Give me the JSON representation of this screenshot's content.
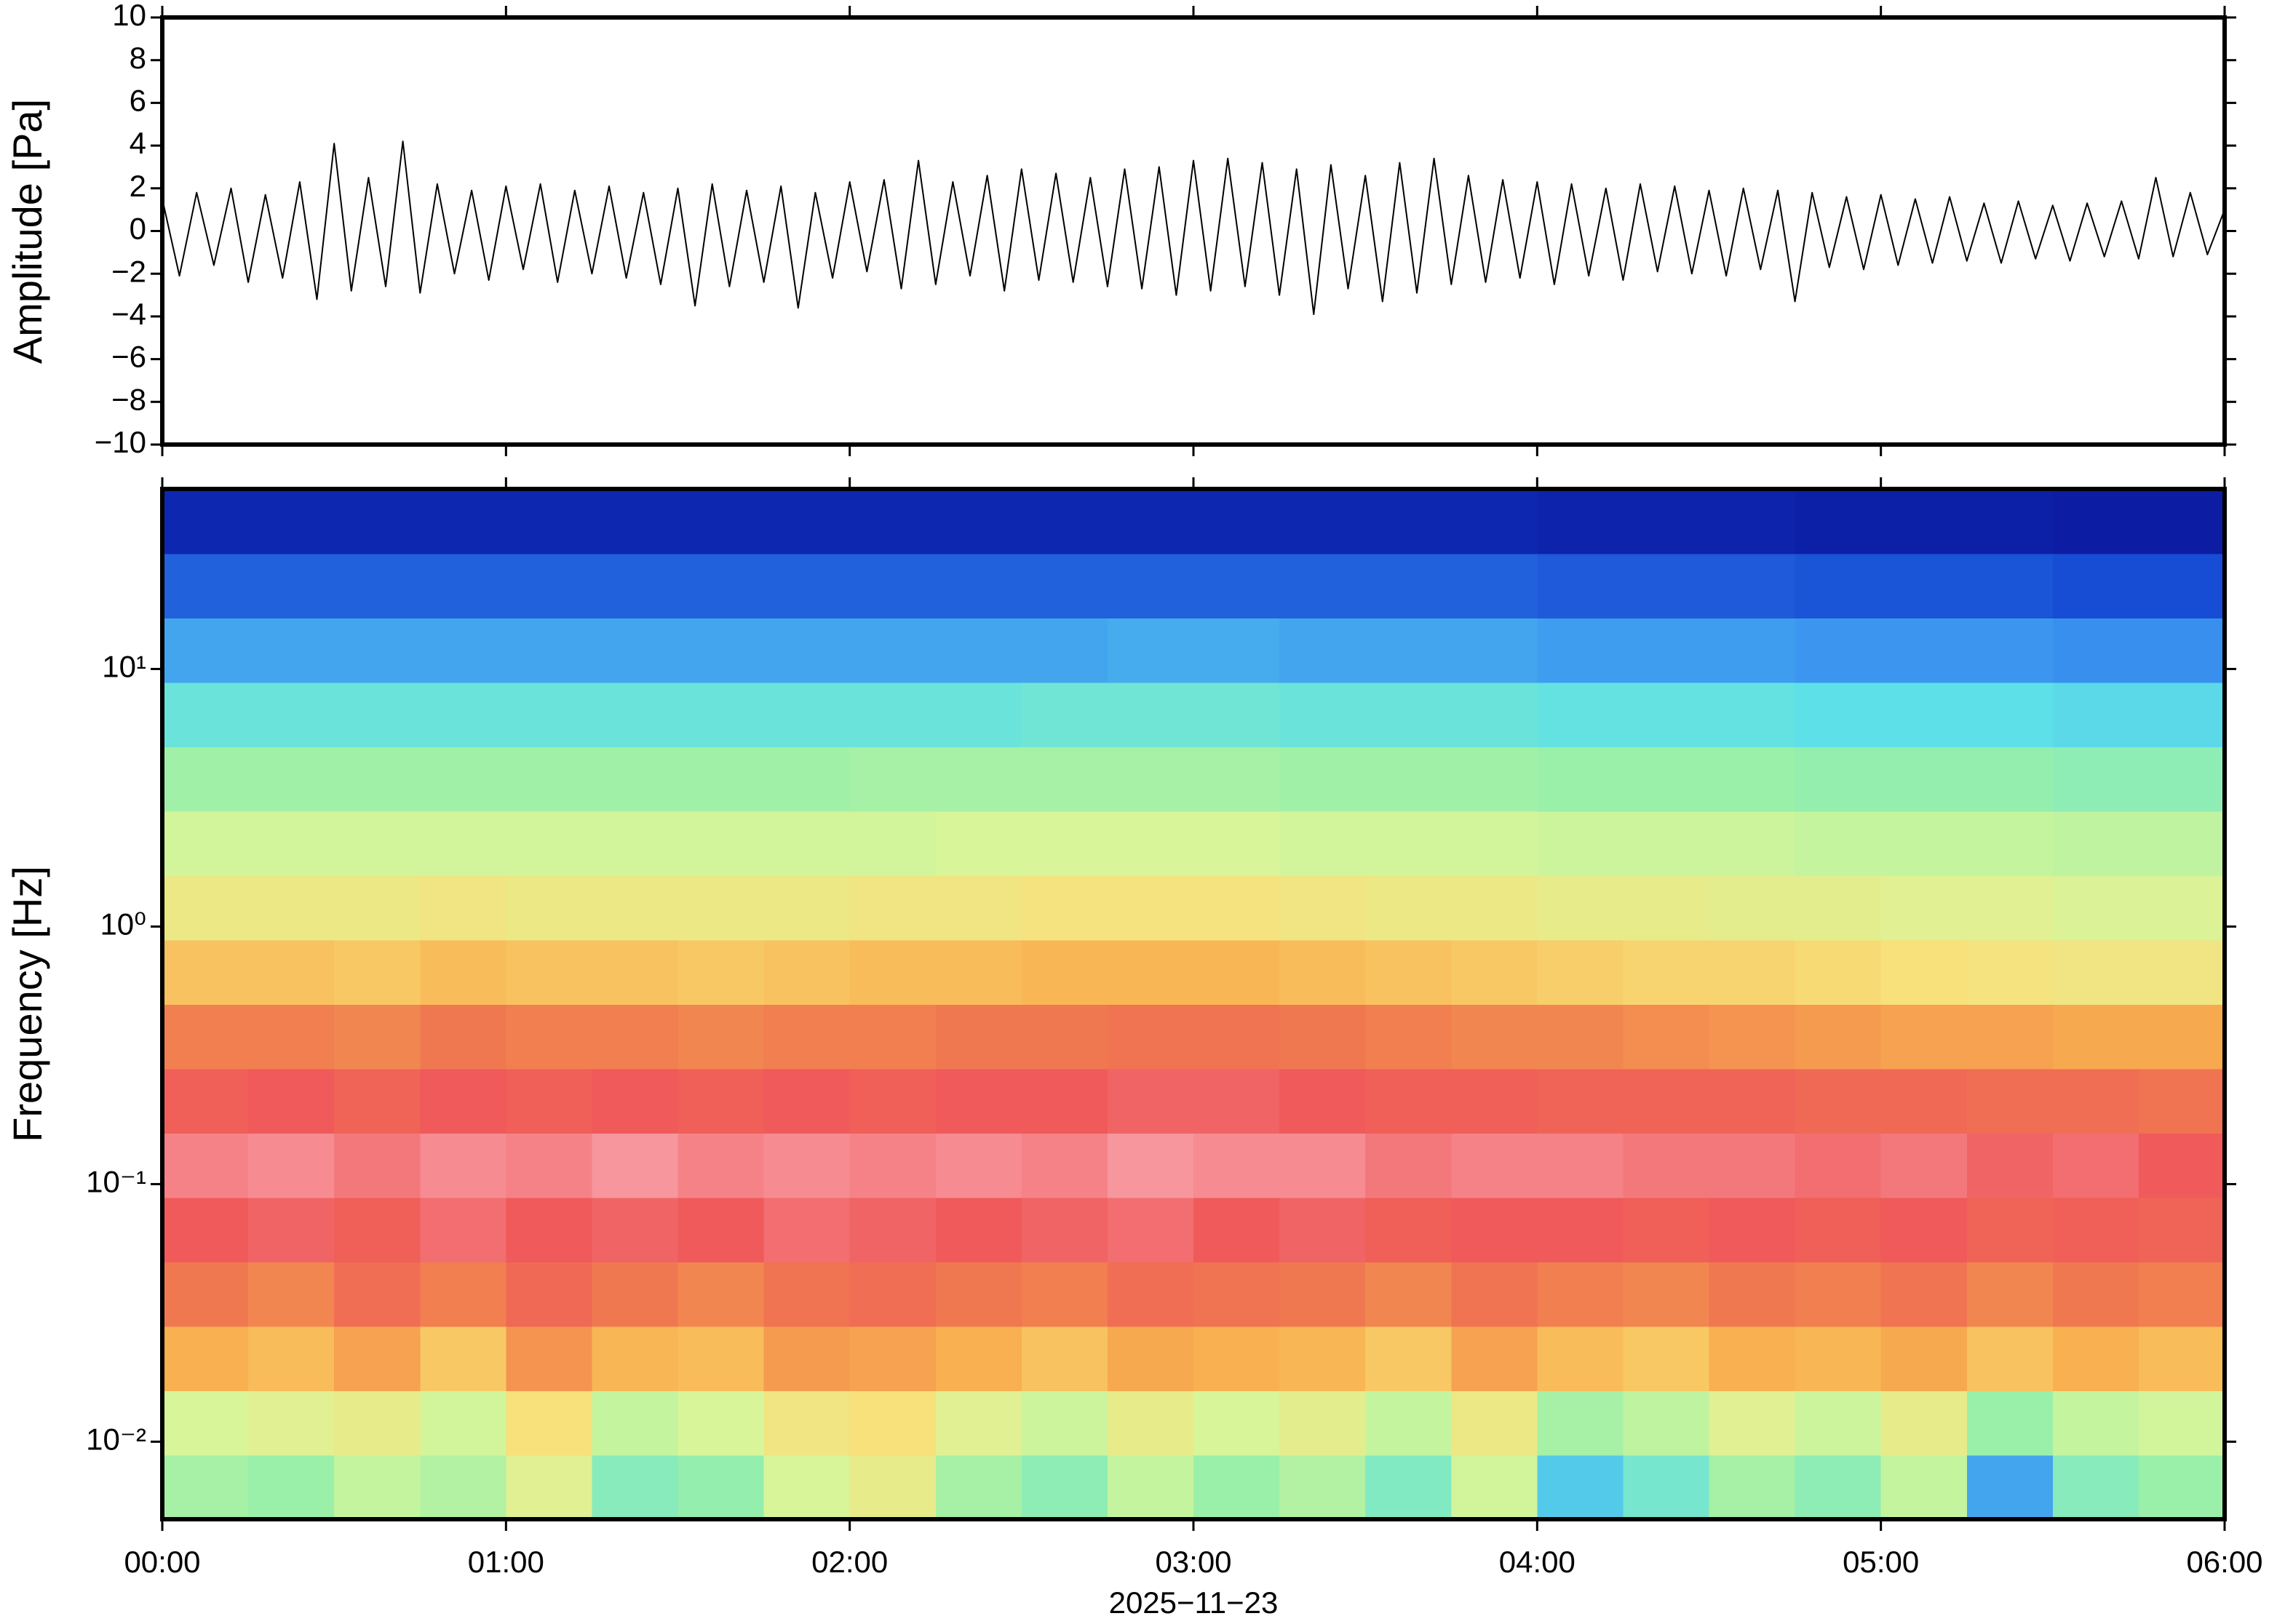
{
  "chart_data": [
    {
      "type": "line",
      "ylabel": "Amplitude [Pa]",
      "xlim": [
        0,
        360
      ],
      "ylim": [
        -10,
        10
      ],
      "yticks": [
        {
          "value": -10,
          "label": "−10"
        },
        {
          "value": -8,
          "label": "−8"
        },
        {
          "value": -6,
          "label": "−6"
        },
        {
          "value": -4,
          "label": "−4"
        },
        {
          "value": -2,
          "label": "−2"
        },
        0,
        2,
        4,
        6,
        8,
        10
      ],
      "x": [
        0,
        3,
        6,
        9,
        12,
        15,
        18,
        21,
        24,
        27,
        30,
        33,
        36,
        39,
        42,
        45,
        48,
        51,
        54,
        57,
        60,
        63,
        66,
        69,
        72,
        75,
        78,
        81,
        84,
        87,
        90,
        93,
        96,
        99,
        102,
        105,
        108,
        111,
        114,
        117,
        120,
        123,
        126,
        129,
        132,
        135,
        138,
        141,
        144,
        147,
        150,
        153,
        156,
        159,
        162,
        165,
        168,
        171,
        174,
        177,
        180,
        183,
        186,
        189,
        192,
        195,
        198,
        201,
        204,
        207,
        210,
        213,
        216,
        219,
        222,
        225,
        228,
        231,
        234,
        237,
        240,
        243,
        246,
        249,
        252,
        255,
        258,
        261,
        264,
        267,
        270,
        273,
        276,
        279,
        282,
        285,
        288,
        291,
        294,
        297,
        300,
        303,
        306,
        309,
        312,
        315,
        318,
        321,
        324,
        327,
        330,
        333,
        336,
        339,
        342,
        345,
        348,
        351,
        354,
        357,
        360
      ],
      "series": [
        {
          "color": "#000000",
          "values": [
            1.5,
            -2.1,
            1.8,
            -1.6,
            2.0,
            -2.4,
            1.7,
            -2.2,
            2.3,
            -3.2,
            4.1,
            -2.8,
            2.5,
            -2.6,
            4.2,
            -2.9,
            2.2,
            -2.0,
            1.9,
            -2.3,
            2.1,
            -1.8,
            2.2,
            -2.4,
            1.9,
            -2.0,
            2.1,
            -2.2,
            1.8,
            -2.5,
            2.0,
            -3.5,
            2.2,
            -2.6,
            1.9,
            -2.4,
            2.1,
            -3.6,
            1.8,
            -2.2,
            2.3,
            -1.9,
            2.4,
            -2.7,
            3.3,
            -2.5,
            2.3,
            -2.1,
            2.6,
            -2.8,
            2.9,
            -2.3,
            2.7,
            -2.4,
            2.5,
            -2.6,
            2.9,
            -2.7,
            3.0,
            -3.0,
            3.3,
            -2.8,
            3.4,
            -2.6,
            3.2,
            -3.0,
            2.9,
            -3.9,
            3.1,
            -2.7,
            2.6,
            -3.3,
            3.2,
            -2.9,
            3.4,
            -2.5,
            2.6,
            -2.4,
            2.4,
            -2.2,
            2.3,
            -2.5,
            2.2,
            -2.1,
            2.0,
            -2.3,
            2.2,
            -1.9,
            2.1,
            -2.0,
            1.9,
            -2.1,
            2.0,
            -1.8,
            1.9,
            -3.3,
            1.8,
            -1.7,
            1.6,
            -1.8,
            1.7,
            -1.6,
            1.5,
            -1.5,
            1.6,
            -1.4,
            1.3,
            -1.5,
            1.4,
            -1.3,
            1.2,
            -1.4,
            1.3,
            -1.2,
            1.4,
            -1.3,
            2.5,
            -1.2,
            1.8,
            -1.1,
            1.0
          ]
        }
      ]
    },
    {
      "type": "heatmap",
      "ylabel": "Frequency [Hz]",
      "xlabel": "2025−11−23",
      "yscale": "log",
      "xlim": [
        0,
        360
      ],
      "ylim": [
        0.005,
        50
      ],
      "xticks": [
        {
          "value": 0,
          "label": "00:00"
        },
        {
          "value": 60,
          "label": "01:00"
        },
        {
          "value": 120,
          "label": "02:00"
        },
        {
          "value": 180,
          "label": "03:00"
        },
        {
          "value": 240,
          "label": "04:00"
        },
        {
          "value": 300,
          "label": "05:00"
        },
        {
          "value": 360,
          "label": "06:00"
        }
      ],
      "yticks": [
        {
          "value": 0.01,
          "label": "10⁻²"
        },
        {
          "value": 0.1,
          "label": "10⁻¹"
        },
        {
          "value": 1,
          "label": "10⁰"
        },
        {
          "value": 10,
          "label": "10¹"
        }
      ],
      "xbins": [
        0,
        15,
        30,
        45,
        60,
        75,
        90,
        105,
        120,
        135,
        150,
        165,
        180,
        195,
        210,
        225,
        240,
        255,
        270,
        285,
        300,
        315,
        330,
        345,
        360
      ],
      "ybins": [
        0.005,
        0.0089,
        0.0158,
        0.0281,
        0.05,
        0.089,
        0.158,
        0.281,
        0.5,
        0.89,
        1.58,
        2.81,
        5,
        8.9,
        15.8,
        28.1,
        50
      ],
      "colorscale": [
        [
          0,
          "#0a0a8c"
        ],
        [
          15,
          "#1040d0"
        ],
        [
          28,
          "#3c96f0"
        ],
        [
          38,
          "#5ee0e8"
        ],
        [
          48,
          "#9af0a8"
        ],
        [
          58,
          "#d8f59a"
        ],
        [
          66,
          "#f8e07a"
        ],
        [
          74,
          "#f8b050"
        ],
        [
          82,
          "#f07850"
        ],
        [
          88,
          "#f05a5a"
        ],
        [
          95,
          "#f8a0a8"
        ]
      ],
      "z": [
        [
          50,
          48,
          55,
          52,
          60,
          45,
          47,
          58,
          62,
          50,
          46,
          55,
          48,
          52,
          44,
          57,
          35,
          42,
          50,
          46,
          55,
          30,
          45,
          48
        ],
        [
          58,
          60,
          62,
          57,
          66,
          55,
          58,
          64,
          66,
          60,
          56,
          62,
          58,
          61,
          55,
          63,
          50,
          54,
          60,
          56,
          62,
          48,
          55,
          57
        ],
        [
          74,
          72,
          76,
          70,
          78,
          73,
          72,
          77,
          76,
          74,
          71,
          75,
          74,
          73,
          70,
          76,
          72,
          70,
          74,
          73,
          75,
          71,
          74,
          72
        ],
        [
          82,
          80,
          84,
          81,
          85,
          82,
          80,
          83,
          84,
          82,
          81,
          84,
          83,
          82,
          80,
          83,
          81,
          80,
          82,
          81,
          83,
          80,
          82,
          81
        ],
        [
          88,
          89,
          87,
          90,
          88,
          89,
          88,
          90,
          89,
          88,
          89,
          90,
          88,
          89,
          87,
          88,
          88,
          87,
          88,
          87,
          88,
          86,
          87,
          86
        ],
        [
          92,
          93,
          91,
          93,
          92,
          94,
          92,
          93,
          92,
          93,
          92,
          94,
          93,
          93,
          91,
          92,
          92,
          91,
          91,
          90,
          91,
          89,
          90,
          88
        ],
        [
          87,
          88,
          86,
          88,
          87,
          88,
          87,
          88,
          87,
          88,
          88,
          89,
          89,
          88,
          87,
          87,
          86,
          86,
          86,
          85,
          85,
          84,
          84,
          83
        ],
        [
          81,
          81,
          80,
          82,
          81,
          81,
          80,
          81,
          81,
          82,
          82,
          83,
          83,
          82,
          81,
          80,
          80,
          79,
          78,
          77,
          76,
          76,
          75,
          75
        ],
        [
          71,
          71,
          70,
          72,
          71,
          71,
          70,
          71,
          72,
          72,
          73,
          73,
          73,
          72,
          71,
          70,
          69,
          68,
          68,
          67,
          66,
          65,
          64,
          64
        ],
        [
          63,
          63,
          63,
          64,
          63,
          63,
          63,
          63,
          64,
          64,
          65,
          65,
          65,
          64,
          63,
          63,
          62,
          62,
          61,
          61,
          60,
          60,
          59,
          59
        ],
        [
          57,
          57,
          57,
          57,
          57,
          57,
          57,
          57,
          57,
          58,
          58,
          58,
          58,
          57,
          57,
          57,
          56,
          56,
          56,
          55,
          55,
          55,
          54,
          54
        ],
        [
          49,
          49,
          49,
          49,
          49,
          49,
          49,
          49,
          50,
          50,
          50,
          50,
          50,
          49,
          49,
          49,
          48,
          48,
          48,
          47,
          47,
          47,
          46,
          46
        ],
        [
          40,
          40,
          40,
          40,
          40,
          40,
          40,
          40,
          40,
          40,
          41,
          41,
          41,
          40,
          40,
          40,
          39,
          39,
          39,
          38,
          38,
          38,
          37,
          37
        ],
        [
          30,
          30,
          30,
          30,
          30,
          30,
          30,
          30,
          30,
          30,
          30,
          31,
          31,
          30,
          30,
          30,
          29,
          29,
          29,
          28,
          28,
          28,
          27,
          27
        ],
        [
          20,
          20,
          20,
          20,
          20,
          20,
          20,
          20,
          20,
          20,
          20,
          20,
          20,
          20,
          20,
          20,
          19,
          19,
          19,
          18,
          18,
          18,
          17,
          17
        ],
        [
          8,
          8,
          8,
          8,
          8,
          8,
          8,
          8,
          8,
          8,
          8,
          8,
          8,
          8,
          8,
          8,
          7,
          7,
          7,
          6,
          6,
          6,
          5,
          5
        ]
      ]
    }
  ]
}
